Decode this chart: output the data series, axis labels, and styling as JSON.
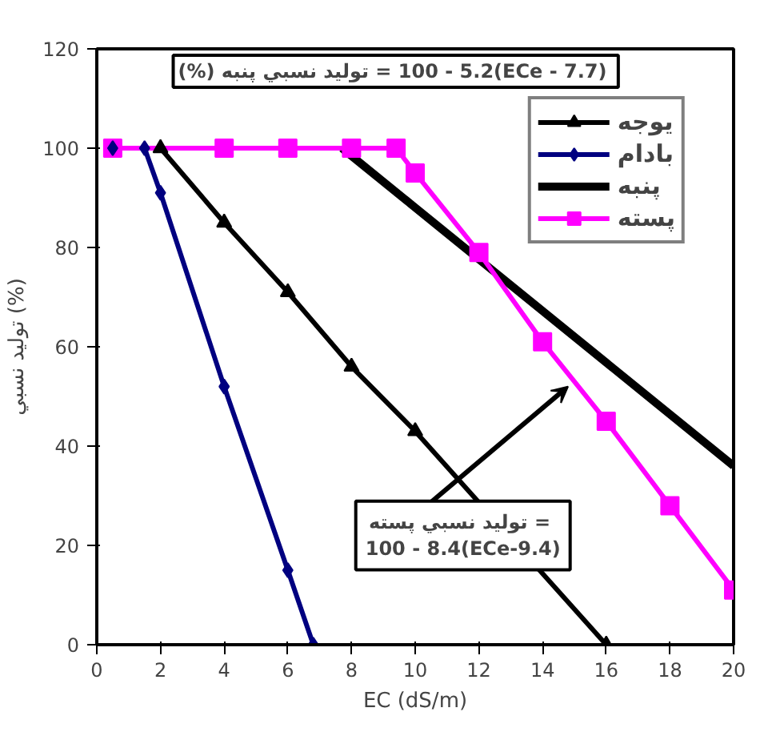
{
  "chart_data": {
    "type": "line",
    "xlabel": "EC (dS/m)",
    "ylabel": "تولید نسبي (%)",
    "xlim": [
      0,
      20
    ],
    "xticks": [
      0,
      2,
      4,
      6,
      8,
      10,
      12,
      14,
      16,
      18,
      20
    ],
    "ylim": [
      0,
      120
    ],
    "yticks": [
      0,
      20,
      40,
      60,
      80,
      100,
      120
    ],
    "grid": false,
    "legend": "top right",
    "series": [
      {
        "name": "يوجه",
        "color": "#000000",
        "marker": "triangle",
        "x": [
          2,
          4,
          6,
          8,
          10,
          16
        ],
        "values": [
          100,
          85,
          71,
          56,
          43,
          0
        ]
      },
      {
        "name": "بادام",
        "color": "#000080",
        "marker": "diamond",
        "x": [
          0.5,
          1.5,
          2,
          4,
          6,
          6.8
        ],
        "values": [
          100,
          100,
          91,
          52,
          15,
          0
        ]
      },
      {
        "name": "پنبه",
        "color": "#000000",
        "marker": "none",
        "x": [
          7.7,
          20
        ],
        "values": [
          100,
          36
        ]
      },
      {
        "name": "پسته",
        "color": "#ff00ff",
        "marker": "square",
        "x": [
          0.5,
          4,
          6,
          8,
          9.4,
          10,
          12,
          14,
          16,
          18,
          20
        ],
        "values": [
          100,
          100,
          100,
          100,
          100,
          95,
          79,
          61,
          45,
          28,
          11
        ]
      }
    ],
    "annotations": [
      "(%) تولید نسبي پنبه  ‎= 100 - 5.2(ECe - 7.7)",
      {
        "text": "تولید نسبي پسته  =\n100 - 8.4(ECe-9.4)",
        "x": 14.8,
        "y": 52
      }
    ]
  }
}
